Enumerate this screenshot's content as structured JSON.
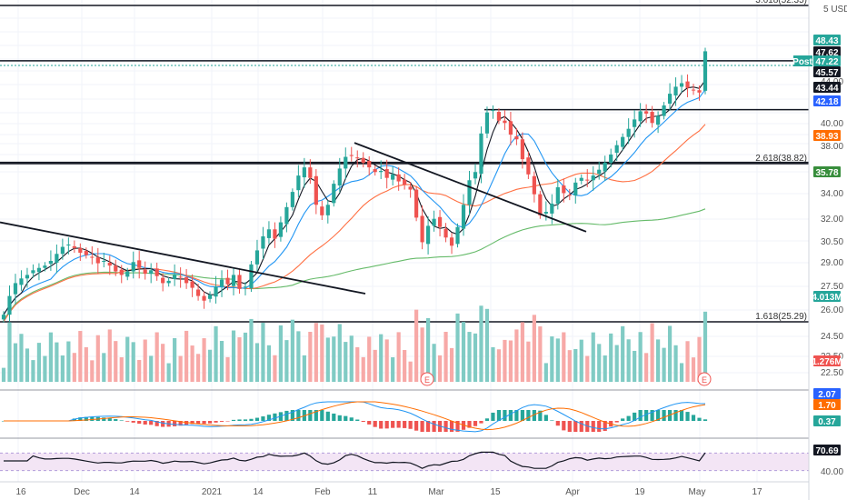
{
  "currency": "5 USD",
  "fib_levels": [
    {
      "text": "3.618(52.35)",
      "price": 52.35
    },
    {
      "text": "2.618(38.82)",
      "price": 38.82
    },
    {
      "text": "1.618(25.29)",
      "price": 25.29
    }
  ],
  "horizontal_levels": [
    47.62,
    43.44,
    38.93
  ],
  "price_axis_ticks": [
    "44.00",
    "40.00",
    "38.00",
    "34.00",
    "32.00",
    "30.50",
    "29.00",
    "27.50",
    "26.00",
    "24.50",
    "22.50",
    "22.50"
  ],
  "price_badges": [
    {
      "text": "48.43",
      "color": "#26a69a"
    },
    {
      "text": "47.62",
      "color": "#131722"
    },
    {
      "text": "47.22",
      "color": "#26a69a"
    },
    {
      "text": "Post",
      "color": "#26a69a"
    },
    {
      "text": "45.57",
      "color": "#131722"
    },
    {
      "text": "43.44",
      "color": "#131722"
    },
    {
      "text": "42.18",
      "color": "#2962ff"
    },
    {
      "text": "38.93",
      "color": "#ff6d00"
    },
    {
      "text": "35.78",
      "color": "#388e3c"
    },
    {
      "text": "4.013M",
      "color": "#26a69a"
    },
    {
      "text": "1.276M",
      "color": "#ef5350"
    }
  ],
  "time_axis": [
    "16",
    "Dec",
    "14",
    "2021",
    "14",
    "Feb",
    "11",
    "Mar",
    "15",
    "Apr",
    "19",
    "May",
    "17"
  ],
  "earnings_marker": "E",
  "macd_badges": [
    {
      "text": "2.07",
      "color": "#2962ff"
    },
    {
      "text": "1.70",
      "color": "#ff6d00"
    },
    {
      "text": "0.37",
      "color": "#26a69a"
    }
  ],
  "rsi_badge": {
    "text": "70.69",
    "color": "#131722"
  },
  "rsi_tick": "40.00",
  "colors": {
    "up": "#26a69a",
    "down": "#ef5350",
    "ma_fast": "#2196f3",
    "ma_mid": "#ff7043",
    "ma_slow": "#66bb6a",
    "rsi_bg": "#f3e5f5"
  },
  "chart_data": {
    "type": "candlestick",
    "price_range": [
      21,
      53
    ],
    "closes": [
      25.9,
      27.5,
      28.6,
      29.0,
      29.3,
      29.7,
      29.9,
      30.1,
      30.5,
      31.1,
      31.7,
      31.9,
      31.6,
      31.2,
      31.0,
      30.8,
      30.3,
      30.5,
      30.1,
      29.6,
      29.3,
      29.6,
      30.4,
      29.9,
      29.4,
      29.7,
      29.2,
      28.6,
      28.8,
      29.3,
      29.1,
      28.6,
      28.2,
      27.5,
      27.1,
      27.6,
      28.3,
      28.9,
      28.5,
      29.3,
      28.1,
      28.3,
      30.2,
      31.4,
      32.6,
      33.2,
      32.4,
      33.8,
      35.1,
      36.4,
      37.8,
      38.5,
      37.6,
      35.3,
      34.4,
      35.3,
      37.1,
      38.4,
      39.4,
      39.5,
      39.3,
      38.9,
      38.5,
      38.1,
      38.2,
      37.6,
      37.9,
      37.3,
      37.0,
      36.6,
      34.2,
      32.1,
      33.5,
      34.1,
      33.4,
      32.5,
      31.8,
      33.4,
      35.3,
      37.4,
      38.1,
      41.4,
      43.2,
      43.4,
      42.5,
      42.3,
      41.3,
      40.9,
      39.2,
      37.9,
      36.2,
      34.4,
      34.7,
      35.4,
      36.8,
      36.3,
      36.1,
      37.2,
      37.6,
      37.4,
      37.8,
      38.3,
      38.9,
      39.6,
      40.4,
      41.1,
      41.8,
      42.6,
      43.3,
      43.1,
      42.3,
      42.9,
      43.8,
      44.8,
      45.4,
      45.7,
      45.3,
      45.1,
      44.9,
      48.43
    ],
    "volume_range": [
      0,
      5.2
    ],
    "macd": {
      "macd": 2.07,
      "signal": 1.7,
      "histogram": 0.37
    },
    "rsi": 70.69
  }
}
